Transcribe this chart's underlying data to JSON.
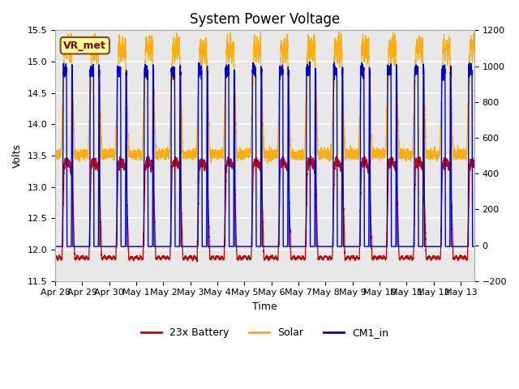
{
  "title": "System Power Voltage",
  "xlabel": "Time",
  "ylabel": "Volts",
  "ylim_left": [
    11.5,
    15.5
  ],
  "ylim_right": [
    -200,
    1200
  ],
  "plot_bg_color": "#e8e8e8",
  "colors": {
    "battery": "#cc0000",
    "solar": "#ffaa00",
    "cm1": "#0000cc"
  },
  "legend_labels": [
    "23x Battery",
    "Solar",
    "CM1_in"
  ],
  "annotation_box": "VR_met",
  "annotation_box_color": "#ffff99",
  "annotation_box_border": "#8B4513",
  "x_tick_labels": [
    "Apr 28",
    "Apr 29",
    "Apr 30",
    "May 1",
    "May 2",
    "May 3",
    "May 4",
    "May 5",
    "May 6",
    "May 7",
    "May 8",
    "May 9",
    "May 10",
    "May 11",
    "May 12",
    "May 13"
  ],
  "title_fontsize": 12,
  "axis_fontsize": 9,
  "tick_fontsize": 8
}
